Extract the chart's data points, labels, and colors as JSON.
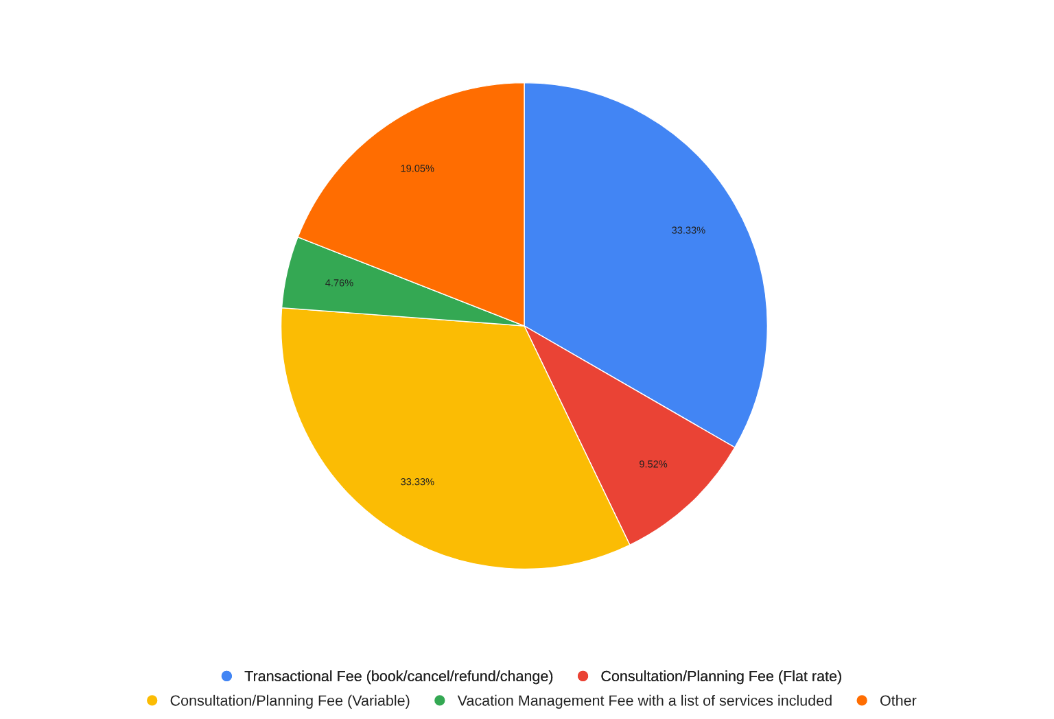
{
  "chart_data": {
    "type": "pie",
    "categories": [
      "Transactional Fee (book/cancel/refund/change)",
      "Consultation/Planning Fee (Flat rate)",
      "Consultation/Planning Fee (Variable)",
      "Vacation Management Fee with a list of services included",
      "Other"
    ],
    "values": [
      33.33,
      9.52,
      33.33,
      4.76,
      19.05
    ],
    "value_labels": [
      "33.33%",
      "9.52%",
      "33.33%",
      "4.76%",
      "19.05%"
    ],
    "colors": [
      "#4285f4",
      "#ea4335",
      "#fbbc04",
      "#34a853",
      "#ff6d01"
    ],
    "legend": "bottom"
  }
}
